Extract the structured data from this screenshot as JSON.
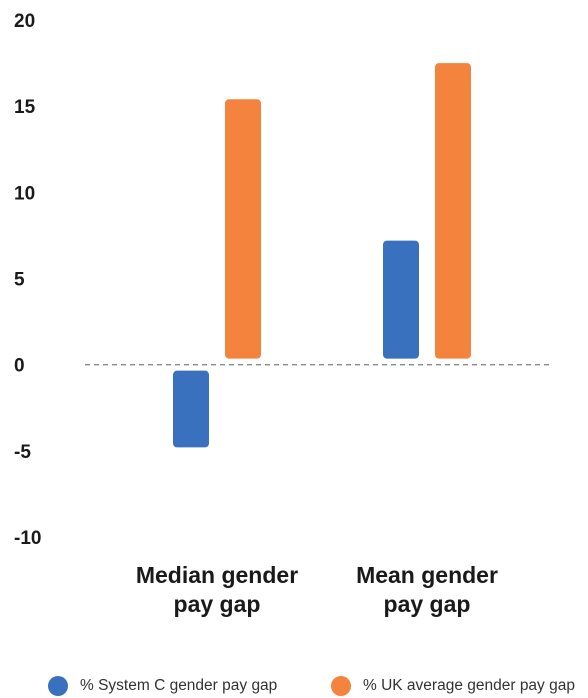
{
  "chart_data": {
    "type": "bar",
    "categories": [
      [
        "Median gender",
        "pay gap"
      ],
      [
        "Mean gender",
        "pay gap"
      ]
    ],
    "series": [
      {
        "name": "% System C gender pay gap",
        "color": "#3a71be",
        "values": [
          -4.8,
          7.2
        ]
      },
      {
        "name": "% UK average gender pay gap",
        "color": "#f3833d",
        "values": [
          15.4,
          17.5
        ]
      }
    ],
    "yticks": [
      "20",
      "15",
      "10",
      "5",
      "0",
      "-5",
      "-10"
    ],
    "ylim": [
      -10,
      20
    ],
    "zero_line": "dashed",
    "grid": false,
    "legend_position": "bottom"
  }
}
